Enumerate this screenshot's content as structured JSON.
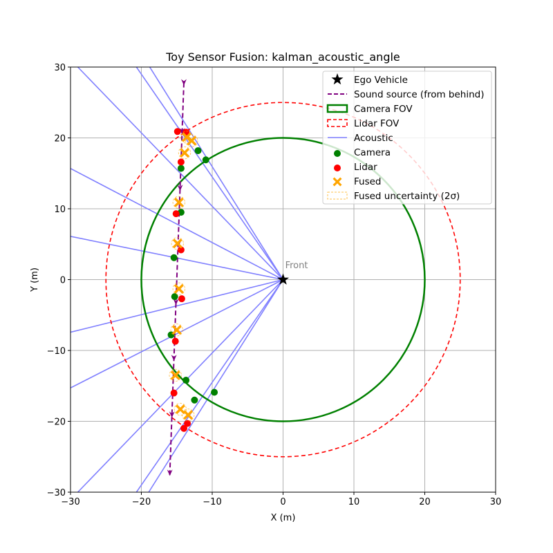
{
  "chart_data": {
    "type": "scatter",
    "title": "Toy Sensor Fusion: kalman_acoustic_angle",
    "xlabel": "X (m)",
    "ylabel": "Y (m)",
    "xlim": [
      -30,
      30
    ],
    "ylim": [
      -30,
      30
    ],
    "xticks": [
      -30,
      -20,
      -10,
      0,
      10,
      20,
      30
    ],
    "yticks": [
      -30,
      -20,
      -10,
      0,
      10,
      20,
      30
    ],
    "xtick_labels": [
      "−30",
      "−20",
      "−10",
      "0",
      "10",
      "20",
      "30"
    ],
    "ytick_labels": [
      "−30",
      "−20",
      "−10",
      "0",
      "10",
      "20",
      "30"
    ],
    "grid": true,
    "legend_position": "top-right",
    "annotation": {
      "text": "Front",
      "x": 0.3,
      "y": 1.6,
      "color": "#808080"
    },
    "ego": {
      "x": 0,
      "y": 0,
      "color": "#000000"
    },
    "camera_fov_radius": 20,
    "lidar_fov_radius": 25,
    "sound_source": {
      "start": [
        -14.0,
        27.8
      ],
      "end": [
        -16.0,
        -27.8
      ],
      "arrow_marker_y": [
        27.8,
        20.9,
        12.9,
        4.9,
        -3.2,
        -11.1,
        -19.1,
        -27.3
      ],
      "color": "#800080"
    },
    "acoustic_bearings_deg": [
      134.0,
      124.6,
      122.1,
      152.4,
      168.5,
      193.9,
      207.0,
      226.0,
      235.4,
      237.7
    ],
    "camera_points": [
      [
        -12.0,
        18.2
      ],
      [
        -10.9,
        16.9
      ],
      [
        -14.4,
        15.7
      ],
      [
        -14.4,
        9.5
      ],
      [
        -15.4,
        3.1
      ],
      [
        -15.3,
        -2.4
      ],
      [
        -15.8,
        -7.8
      ],
      [
        -13.7,
        -14.2
      ],
      [
        -12.5,
        -17.0
      ],
      [
        -9.7,
        -15.9
      ]
    ],
    "lidar_points": [
      [
        -14.9,
        20.9
      ],
      [
        -13.7,
        20.8
      ],
      [
        -14.4,
        16.6
      ],
      [
        -15.1,
        9.3
      ],
      [
        -14.4,
        4.2
      ],
      [
        -14.3,
        -2.7
      ],
      [
        -15.2,
        -8.7
      ],
      [
        -15.4,
        -16.0
      ],
      [
        -13.5,
        -20.3
      ],
      [
        -14.0,
        -21.0
      ]
    ],
    "fused_points": [
      [
        -13.6,
        20.1
      ],
      [
        -12.9,
        19.6
      ],
      [
        -13.9,
        17.9
      ],
      [
        -14.7,
        10.9
      ],
      [
        -14.9,
        5.1
      ],
      [
        -14.7,
        -1.3
      ],
      [
        -15.0,
        -7.1
      ],
      [
        -15.2,
        -13.5
      ],
      [
        -14.5,
        -18.3
      ],
      [
        -13.4,
        -19.1
      ]
    ],
    "fused_uncertainty_radius": 0.85,
    "colors": {
      "camera": "#008000",
      "lidar": "#ff0000",
      "fused": "#ffa500",
      "acoustic": "#7f7fff",
      "grid": "#b0b0b0"
    },
    "legend": [
      {
        "label": "Ego Vehicle",
        "kind": "star"
      },
      {
        "label": "Sound source (from behind)",
        "kind": "dash-line"
      },
      {
        "label": "Camera FOV",
        "kind": "camera-patch"
      },
      {
        "label": "Lidar FOV",
        "kind": "lidar-patch"
      },
      {
        "label": "Acoustic",
        "kind": "line"
      },
      {
        "label": "Camera",
        "kind": "camera-dot"
      },
      {
        "label": "Lidar",
        "kind": "lidar-dot"
      },
      {
        "label": "Fused",
        "kind": "x"
      },
      {
        "label": "Fused uncertainty (2σ)",
        "kind": "uncert-patch"
      }
    ]
  }
}
